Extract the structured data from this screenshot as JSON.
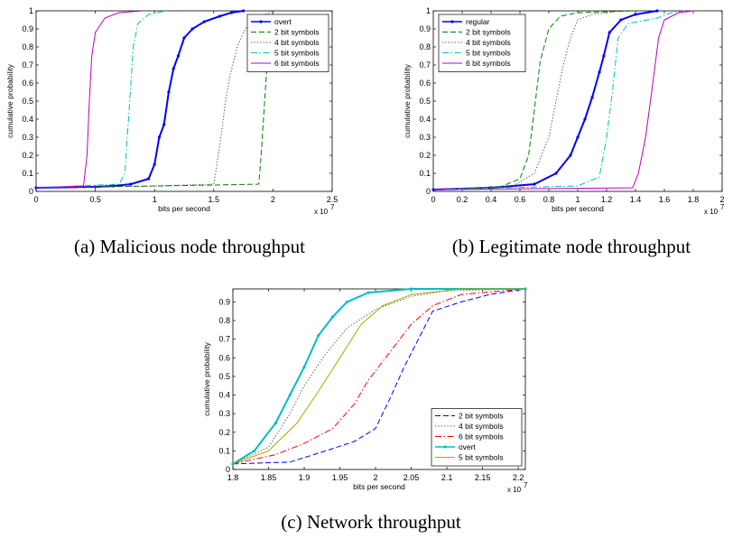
{
  "chart_data": [
    {
      "type": "line",
      "caption": "(a) Malicious node throughput",
      "xlabel": "bits per second",
      "ylabel": "cumulative probability",
      "x_multiplier_label": "x 10",
      "x_multiplier_exp": "7",
      "xlim": [
        0,
        2.5
      ],
      "ylim": [
        0,
        1
      ],
      "xticks": [
        "0",
        "0.5",
        "1",
        "1.5",
        "2",
        "2.5"
      ],
      "yticks": [
        "0",
        "0.1",
        "0.2",
        "0.3",
        "0.4",
        "0.5",
        "0.6",
        "0.7",
        "0.8",
        "0.9",
        "1"
      ],
      "legend_position": "top-right",
      "series": [
        {
          "name": "overt",
          "color": "#0000ff",
          "style": "solid-dot",
          "points": [
            [
              0,
              0.02
            ],
            [
              0.5,
              0.025
            ],
            [
              0.65,
              0.03
            ],
            [
              0.8,
              0.04
            ],
            [
              0.95,
              0.07
            ],
            [
              1.0,
              0.15
            ],
            [
              1.04,
              0.3
            ],
            [
              1.08,
              0.37
            ],
            [
              1.12,
              0.55
            ],
            [
              1.16,
              0.68
            ],
            [
              1.2,
              0.75
            ],
            [
              1.25,
              0.85
            ],
            [
              1.32,
              0.9
            ],
            [
              1.42,
              0.94
            ],
            [
              1.55,
              0.97
            ],
            [
              1.65,
              0.99
            ],
            [
              1.75,
              1.0
            ]
          ]
        },
        {
          "name": "2 bit symbols",
          "color": "#008000",
          "style": "dash",
          "points": [
            [
              0,
              0.02
            ],
            [
              1.5,
              0.035
            ],
            [
              1.88,
              0.04
            ],
            [
              1.9,
              0.2
            ],
            [
              1.93,
              0.5
            ],
            [
              1.96,
              0.8
            ],
            [
              2.0,
              1.0
            ]
          ]
        },
        {
          "name": "4 bit symbols",
          "color": "#444444",
          "style": "dot",
          "points": [
            [
              0,
              0.02
            ],
            [
              1.0,
              0.03
            ],
            [
              1.5,
              0.04
            ],
            [
              1.52,
              0.12
            ],
            [
              1.56,
              0.3
            ],
            [
              1.6,
              0.5
            ],
            [
              1.64,
              0.65
            ],
            [
              1.7,
              0.8
            ],
            [
              1.75,
              0.88
            ],
            [
              1.8,
              0.93
            ],
            [
              1.9,
              0.97
            ],
            [
              2.0,
              1.0
            ]
          ]
        },
        {
          "name": "5 bit symbols",
          "color": "#00bfbf",
          "style": "dashdot",
          "points": [
            [
              0,
              0.02
            ],
            [
              0.7,
              0.04
            ],
            [
              0.75,
              0.1
            ],
            [
              0.77,
              0.3
            ],
            [
              0.8,
              0.6
            ],
            [
              0.82,
              0.8
            ],
            [
              0.86,
              0.93
            ],
            [
              0.95,
              0.98
            ],
            [
              1.1,
              1.0
            ]
          ]
        },
        {
          "name": "6 bit symbols",
          "color": "#bf00bf",
          "style": "solid",
          "points": [
            [
              0,
              0.02
            ],
            [
              0.4,
              0.03
            ],
            [
              0.43,
              0.2
            ],
            [
              0.45,
              0.5
            ],
            [
              0.47,
              0.75
            ],
            [
              0.5,
              0.88
            ],
            [
              0.58,
              0.96
            ],
            [
              0.7,
              0.99
            ],
            [
              0.9,
              1.0
            ]
          ]
        }
      ]
    },
    {
      "type": "line",
      "caption": "(b) Legitimate node throughput",
      "xlabel": "bits per second",
      "ylabel": "cumulative probability",
      "x_multiplier_label": "x 10",
      "x_multiplier_exp": "7",
      "xlim": [
        0,
        2
      ],
      "ylim": [
        0,
        1
      ],
      "xticks": [
        "0",
        "0.2",
        "0.4",
        "0.6",
        "0.8",
        "1",
        "1.2",
        "1.4",
        "1.6",
        "1.8",
        "2"
      ],
      "yticks": [
        "0",
        "0.1",
        "0.2",
        "0.3",
        "0.4",
        "0.5",
        "0.6",
        "0.7",
        "0.8",
        "0.9",
        "1"
      ],
      "legend_position": "top-left",
      "series": [
        {
          "name": "regular",
          "color": "#0000ff",
          "style": "solid-dot",
          "points": [
            [
              0,
              0.01
            ],
            [
              0.4,
              0.02
            ],
            [
              0.7,
              0.04
            ],
            [
              0.85,
              0.1
            ],
            [
              0.95,
              0.2
            ],
            [
              1.0,
              0.3
            ],
            [
              1.05,
              0.4
            ],
            [
              1.1,
              0.52
            ],
            [
              1.15,
              0.66
            ],
            [
              1.18,
              0.75
            ],
            [
              1.22,
              0.88
            ],
            [
              1.3,
              0.95
            ],
            [
              1.4,
              0.98
            ],
            [
              1.55,
              1.0
            ]
          ]
        },
        {
          "name": "2 bit symbols",
          "color": "#008000",
          "style": "dash",
          "points": [
            [
              0,
              0.01
            ],
            [
              0.45,
              0.02
            ],
            [
              0.6,
              0.07
            ],
            [
              0.66,
              0.2
            ],
            [
              0.7,
              0.45
            ],
            [
              0.74,
              0.72
            ],
            [
              0.8,
              0.9
            ],
            [
              0.88,
              0.97
            ],
            [
              1.0,
              0.99
            ],
            [
              1.4,
              1.0
            ]
          ]
        },
        {
          "name": "4 bit symbols",
          "color": "#444444",
          "style": "dot",
          "points": [
            [
              0,
              0.01
            ],
            [
              0.55,
              0.03
            ],
            [
              0.7,
              0.1
            ],
            [
              0.8,
              0.3
            ],
            [
              0.85,
              0.5
            ],
            [
              0.9,
              0.7
            ],
            [
              0.95,
              0.85
            ],
            [
              1.0,
              0.95
            ],
            [
              1.1,
              0.98
            ],
            [
              1.3,
              1.0
            ]
          ]
        },
        {
          "name": "5 bit symbols",
          "color": "#00bfbf",
          "style": "dashdot",
          "points": [
            [
              0,
              0.01
            ],
            [
              1.0,
              0.03
            ],
            [
              1.15,
              0.08
            ],
            [
              1.2,
              0.3
            ],
            [
              1.24,
              0.55
            ],
            [
              1.28,
              0.85
            ],
            [
              1.35,
              0.93
            ],
            [
              1.55,
              0.96
            ],
            [
              1.65,
              0.99
            ],
            [
              1.75,
              1.0
            ]
          ]
        },
        {
          "name": "6 bit symbols",
          "color": "#bf00bf",
          "style": "solid",
          "points": [
            [
              0,
              0.01
            ],
            [
              1.38,
              0.02
            ],
            [
              1.42,
              0.1
            ],
            [
              1.47,
              0.3
            ],
            [
              1.52,
              0.6
            ],
            [
              1.56,
              0.85
            ],
            [
              1.6,
              0.95
            ],
            [
              1.7,
              0.99
            ],
            [
              1.8,
              1.0
            ]
          ]
        }
      ]
    },
    {
      "type": "line",
      "caption": "(c) Network throughput",
      "xlabel": "bits per second",
      "ylabel": "cumulative probability",
      "x_multiplier_label": "x 10",
      "x_multiplier_exp": "7",
      "xlim": [
        1.8,
        2.21
      ],
      "ylim": [
        0,
        0.97
      ],
      "xticks": [
        "1.8",
        "1.85",
        "1.9",
        "1.95",
        "2",
        "2.05",
        "2.1",
        "2.15",
        "2.2"
      ],
      "yticks": [
        "0",
        "0.1",
        "0.2",
        "0.3",
        "0.4",
        "0.5",
        "0.6",
        "0.7",
        "0.8",
        "0.9"
      ],
      "legend_position": "bottom-right",
      "series": [
        {
          "name": "2 bit symbols",
          "color": "#0000ff",
          "style": "dash",
          "points": [
            [
              1.8,
              0.03
            ],
            [
              1.88,
              0.04
            ],
            [
              1.93,
              0.1
            ],
            [
              1.97,
              0.15
            ],
            [
              2.0,
              0.22
            ],
            [
              2.02,
              0.38
            ],
            [
              2.04,
              0.55
            ],
            [
              2.06,
              0.7
            ],
            [
              2.08,
              0.85
            ],
            [
              2.12,
              0.9
            ],
            [
              2.16,
              0.94
            ],
            [
              2.21,
              0.97
            ]
          ]
        },
        {
          "name": "4 bit symbols",
          "color": "#444444",
          "style": "dot",
          "points": [
            [
              1.8,
              0.03
            ],
            [
              1.85,
              0.12
            ],
            [
              1.88,
              0.3
            ],
            [
              1.9,
              0.45
            ],
            [
              1.93,
              0.62
            ],
            [
              1.96,
              0.76
            ],
            [
              2.0,
              0.86
            ],
            [
              2.05,
              0.93
            ],
            [
              2.1,
              0.96
            ],
            [
              2.21,
              0.97
            ]
          ]
        },
        {
          "name": "6 bit symbols",
          "color": "#ff0000",
          "style": "dashdot",
          "points": [
            [
              1.8,
              0.03
            ],
            [
              1.86,
              0.08
            ],
            [
              1.9,
              0.14
            ],
            [
              1.94,
              0.22
            ],
            [
              1.97,
              0.35
            ],
            [
              1.99,
              0.48
            ],
            [
              2.02,
              0.63
            ],
            [
              2.05,
              0.78
            ],
            [
              2.08,
              0.88
            ],
            [
              2.12,
              0.94
            ],
            [
              2.21,
              0.97
            ]
          ]
        },
        {
          "name": "overt",
          "color": "#00bfbf",
          "style": "solid-dot",
          "points": [
            [
              1.8,
              0.03
            ],
            [
              1.83,
              0.1
            ],
            [
              1.86,
              0.25
            ],
            [
              1.88,
              0.4
            ],
            [
              1.9,
              0.55
            ],
            [
              1.92,
              0.72
            ],
            [
              1.94,
              0.82
            ],
            [
              1.96,
              0.9
            ],
            [
              1.99,
              0.95
            ],
            [
              2.05,
              0.97
            ],
            [
              2.21,
              0.97
            ]
          ]
        },
        {
          "name": "5 bit symbols",
          "color": "#aaaa00",
          "style": "solid",
          "points": [
            [
              1.8,
              0.03
            ],
            [
              1.85,
              0.1
            ],
            [
              1.89,
              0.25
            ],
            [
              1.92,
              0.42
            ],
            [
              1.95,
              0.6
            ],
            [
              1.98,
              0.78
            ],
            [
              2.01,
              0.88
            ],
            [
              2.05,
              0.94
            ],
            [
              2.12,
              0.97
            ],
            [
              2.21,
              0.97
            ]
          ]
        }
      ]
    }
  ]
}
